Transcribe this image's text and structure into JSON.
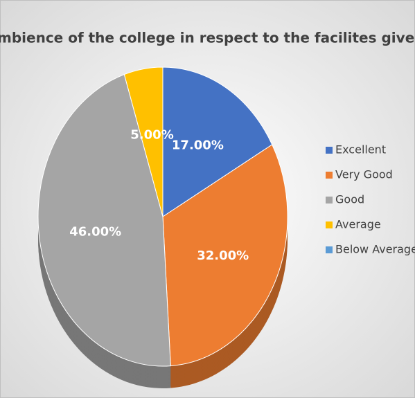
{
  "chart_data": {
    "type": "pie",
    "title": "mbience of the college in respect to the facilites give",
    "categories": [
      "Excellent",
      "Very Good",
      "Good",
      "Average",
      "Below Average"
    ],
    "values": [
      17,
      32,
      46,
      5,
      0
    ],
    "value_labels": [
      "17.00%",
      "32.00%",
      "46.00%",
      "5.00%",
      null
    ],
    "colors": [
      "#4472c4",
      "#ed7d31",
      "#a5a5a5",
      "#ffc000",
      "#5b9bd5"
    ],
    "legend": "right"
  }
}
